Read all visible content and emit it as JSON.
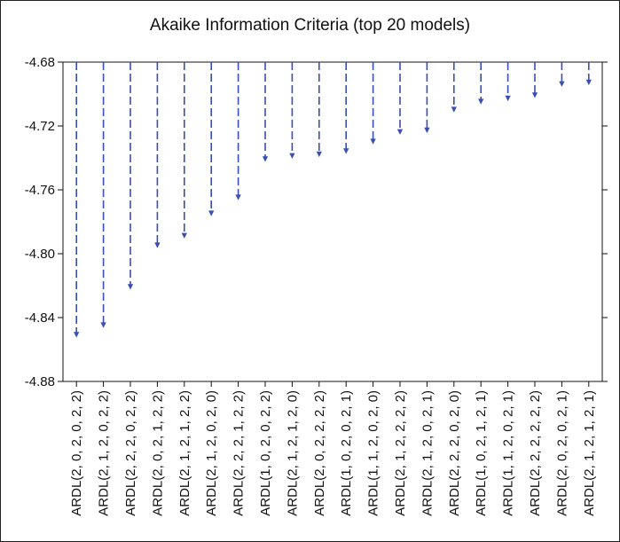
{
  "chart_data": {
    "type": "bar",
    "title": "Akaike Information Criteria (top 20 models)",
    "xlabel": "",
    "ylabel": "",
    "ylim": [
      -4.88,
      -4.68
    ],
    "yticks": [
      "-4.68",
      "-4.72",
      "-4.76",
      "-4.80",
      "-4.84",
      "-4.88"
    ],
    "baseline": -4.68,
    "grid": false,
    "legend": "none",
    "bar_style": "dashed-arrow",
    "color": "#3a4fb4",
    "categories": [
      "ARDL(2, 0, 2, 0, 2, 2)",
      "ARDL(2, 1, 2, 0, 2, 2)",
      "ARDL(2, 2, 2, 0, 2, 2)",
      "ARDL(2, 0, 2, 1, 2, 2)",
      "ARDL(2, 1, 2, 1, 2, 2)",
      "ARDL(2, 1, 2, 0, 2, 0)",
      "ARDL(2, 2, 2, 1, 2, 2)",
      "ARDL(1, 0, 2, 0, 2, 2)",
      "ARDL(2, 1, 2, 1, 2, 0)",
      "ARDL(2, 0, 2, 2, 2, 2)",
      "ARDL(1, 0, 2, 0, 2, 1)",
      "ARDL(1, 1, 2, 0, 2, 0)",
      "ARDL(2, 1, 2, 2, 2, 2)",
      "ARDL(2, 1, 2, 0, 2, 1)",
      "ARDL(2, 2, 2, 0, 2, 0)",
      "ARDL(1, 0, 2, 1, 2, 1)",
      "ARDL(1, 1, 2, 0, 2, 1)",
      "ARDL(2, 2, 2, 2, 2, 2)",
      "ARDL(2, 0, 2, 0, 2, 1)",
      "ARDL(2, 1, 2, 1, 2, 1)"
    ],
    "values": [
      -4.852,
      -4.846,
      -4.822,
      -4.796,
      -4.79,
      -4.776,
      -4.766,
      -4.742,
      -4.74,
      -4.739,
      -4.737,
      -4.731,
      -4.725,
      -4.724,
      -4.711,
      -4.706,
      -4.704,
      -4.702,
      -4.695,
      -4.694
    ]
  }
}
